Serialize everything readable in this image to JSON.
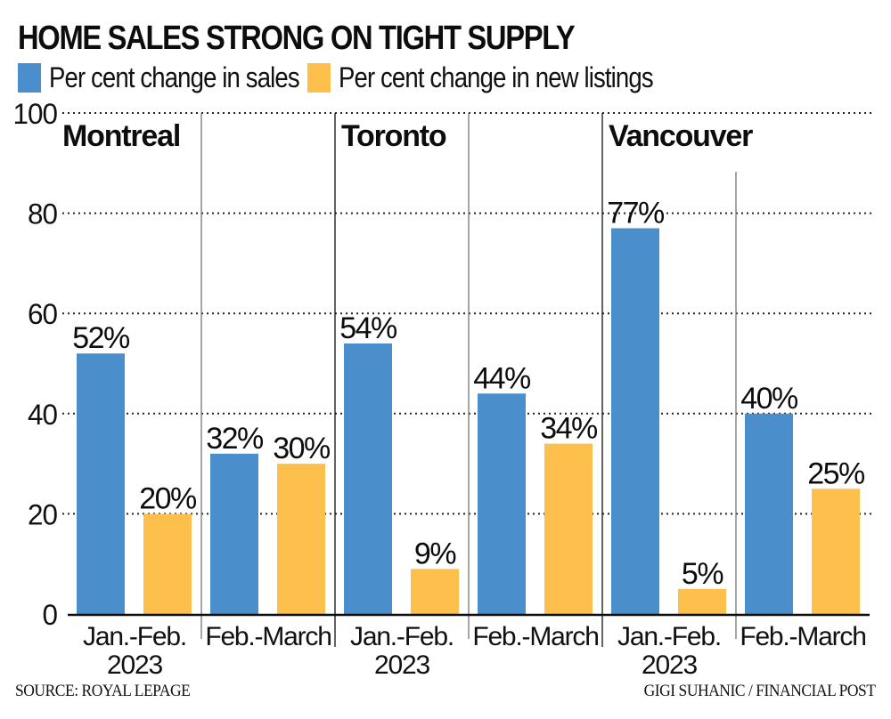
{
  "title": "HOME SALES STRONG ON TIGHT SUPPLY",
  "legend": [
    {
      "label": "Per cent change in sales",
      "color": "#4a8fcb"
    },
    {
      "label": "Per cent change in new listings",
      "color": "#fec04d"
    }
  ],
  "footer": {
    "source": "SOURCE: ROYAL LEPAGE",
    "credit": "GIGI SUHANIC / FINANCIAL POST"
  },
  "chart_data": {
    "type": "bar",
    "title": "HOME SALES STRONG ON TIGHT SUPPLY",
    "xlabel": "",
    "ylabel": "",
    "ylim": [
      0,
      100
    ],
    "yticks": [
      0,
      20,
      40,
      60,
      80,
      100
    ],
    "grid": "horizontal dotted",
    "legend_position": "top-left",
    "groups": [
      {
        "city": "Montreal",
        "periods": [
          {
            "label": [
              "Jan.-Feb.",
              "2023"
            ],
            "sales": 52,
            "listings": 20
          },
          {
            "label": [
              "Feb.-March"
            ],
            "sales": 32,
            "listings": 30
          }
        ]
      },
      {
        "city": "Toronto",
        "periods": [
          {
            "label": [
              "Jan.-Feb.",
              "2023"
            ],
            "sales": 54,
            "listings": 9
          },
          {
            "label": [
              "Feb.-March"
            ],
            "sales": 44,
            "listings": 34
          }
        ]
      },
      {
        "city": "Vancouver",
        "periods": [
          {
            "label": [
              "Jan.-Feb.",
              "2023"
            ],
            "sales": 77,
            "listings": 5
          },
          {
            "label": [
              "Feb.-March"
            ],
            "sales": 40,
            "listings": 25
          }
        ]
      }
    ],
    "series": [
      {
        "name": "Per cent change in sales",
        "key": "sales",
        "color": "#4a8fcb"
      },
      {
        "name": "Per cent change in new listings",
        "key": "listings",
        "color": "#fec04d"
      }
    ],
    "value_suffix": "%"
  }
}
